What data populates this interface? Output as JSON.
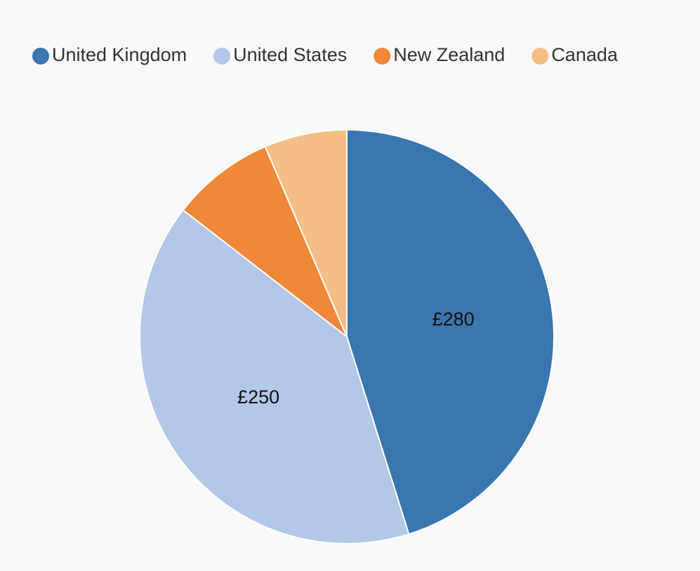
{
  "chart_data": {
    "type": "pie",
    "categories": [
      "United Kingdom",
      "United States",
      "New Zealand",
      "Canada"
    ],
    "values": [
      280,
      250,
      50,
      40
    ],
    "value_labels": [
      "£280",
      "£250",
      null,
      null
    ],
    "colors": [
      "#3a76af",
      "#b3c7e6",
      "#f0883a",
      "#f5be86"
    ],
    "legend": "top"
  }
}
